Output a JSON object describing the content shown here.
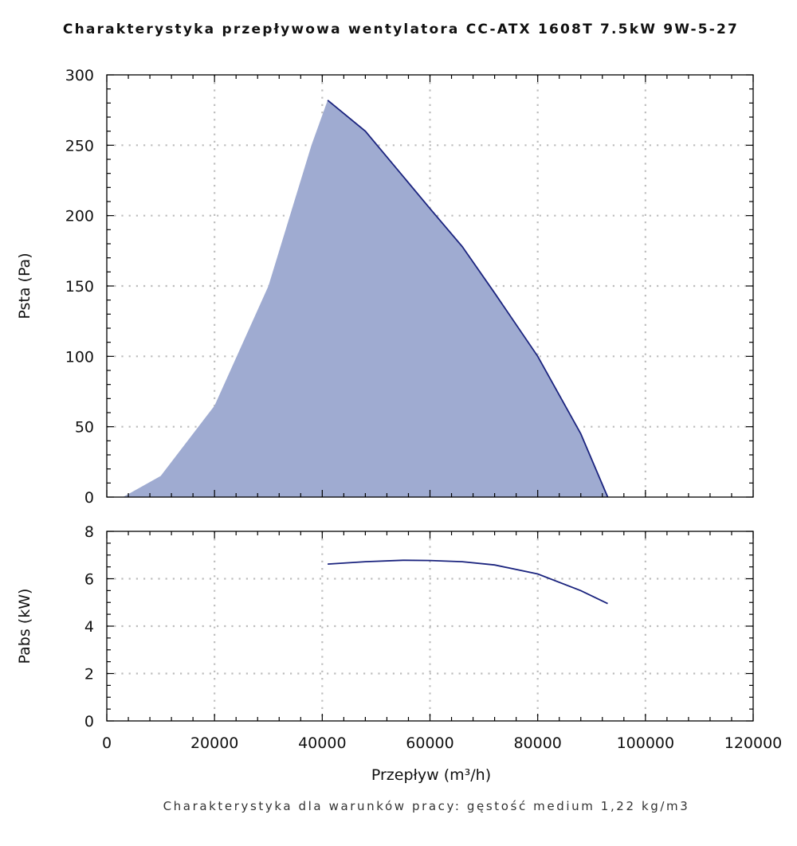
{
  "title": "Charakterystyka przepływowa wentylatora CC-ATX 1608T 7.5kW 9W-5-27",
  "footer": "Charakterystyka dla warunków pracy: gęstość medium 1,22 kg/m3",
  "colors": {
    "line": "#1a237e",
    "fill": "#9fabd1",
    "grid": "#bdbdbd",
    "axis": "#000000"
  },
  "chart_data": [
    {
      "type": "area",
      "ylabel": "Psta (Pa)",
      "xlim": [
        0,
        120000
      ],
      "ylim": [
        0,
        300
      ],
      "x_ticks": [
        0,
        20000,
        40000,
        60000,
        80000,
        100000,
        120000
      ],
      "y_ticks": [
        0,
        50,
        100,
        150,
        200,
        250,
        300
      ],
      "grid": true,
      "series": [
        {
          "x": [
            3000,
            10000,
            20000,
            30000,
            38000,
            41000,
            48000,
            60000,
            66000,
            72000,
            80000,
            88000,
            93000
          ],
          "y": [
            0,
            15,
            65,
            150,
            250,
            282,
            260,
            205,
            178,
            145,
            100,
            45,
            0
          ]
        }
      ]
    },
    {
      "type": "line",
      "ylabel": "Pabs (kW)",
      "xlabel": "Przepływ (m³/h)",
      "xlim": [
        0,
        120000
      ],
      "ylim": [
        0,
        8
      ],
      "x_ticks": [
        0,
        20000,
        40000,
        60000,
        80000,
        100000,
        120000
      ],
      "y_ticks": [
        0,
        2,
        4,
        6,
        8
      ],
      "grid": true,
      "series": [
        {
          "x": [
            41000,
            48000,
            55000,
            60000,
            66000,
            72000,
            80000,
            88000,
            93000
          ],
          "y": [
            6.62,
            6.72,
            6.78,
            6.77,
            6.72,
            6.58,
            6.2,
            5.5,
            4.95
          ]
        }
      ]
    }
  ]
}
